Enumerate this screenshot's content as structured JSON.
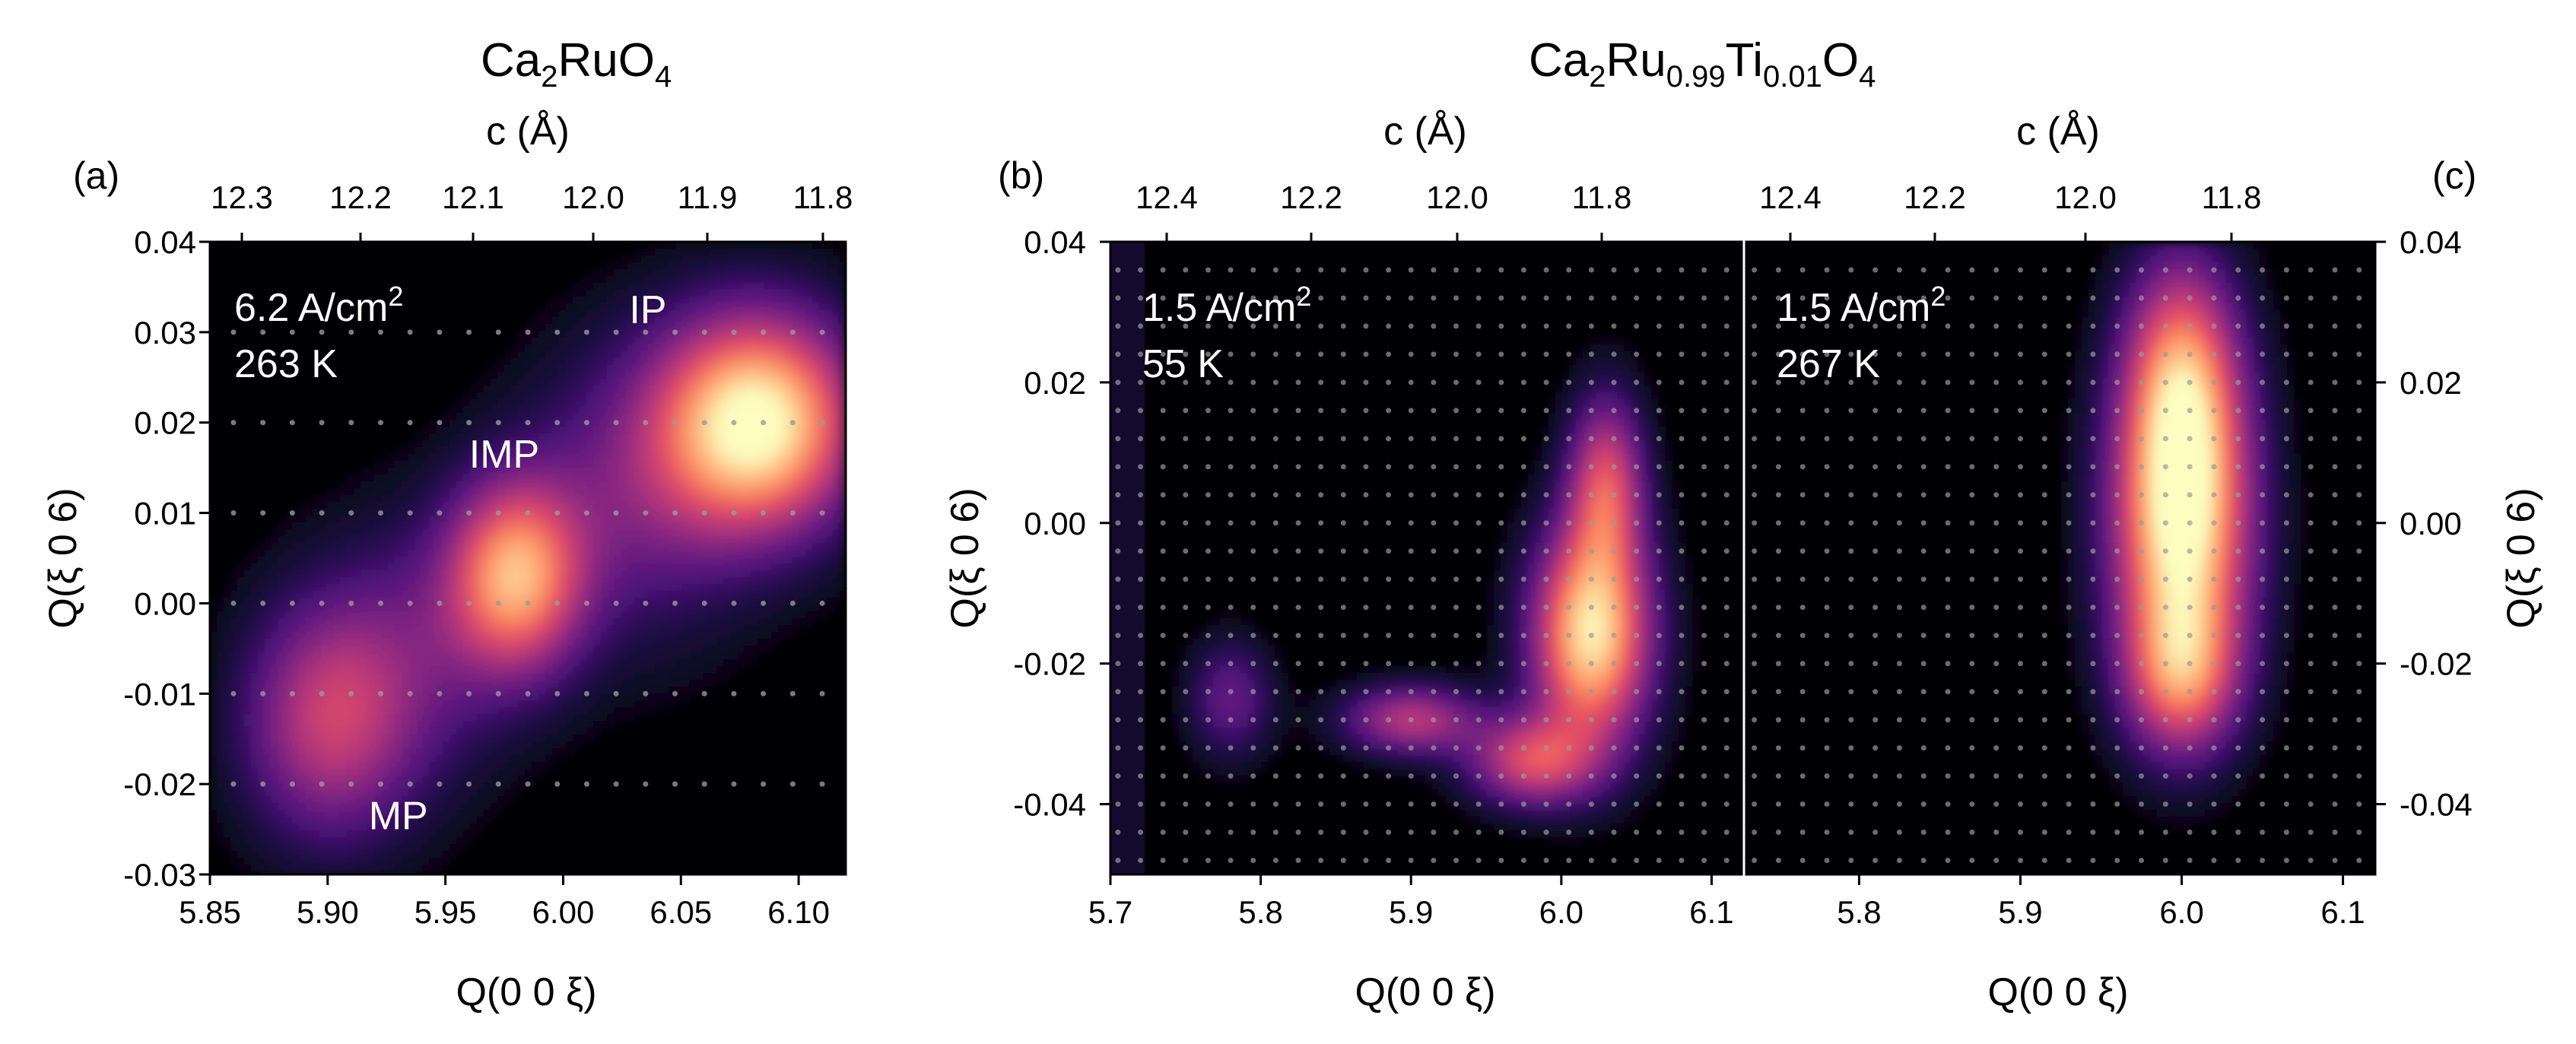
{
  "chart_data": [
    {
      "type": "heatmap",
      "panel_label": "(a)",
      "title_parts": [
        "Ca",
        "2",
        "RuO",
        "4"
      ],
      "xlabel": "Q(0 0 ξ)",
      "ylabel": "Q(ξ 0 6)",
      "top_axis_label": "c (Å)",
      "xlim": [
        5.85,
        6.12
      ],
      "ylim": [
        -0.03,
        0.04
      ],
      "x_ticks": [
        "5.85",
        "5.90",
        "5.95",
        "6.00",
        "6.05",
        "6.10"
      ],
      "x_tick_values": [
        5.85,
        5.9,
        5.95,
        6.0,
        6.05,
        6.1
      ],
      "y_ticks": [
        "-0.03",
        "-0.02",
        "-0.01",
        "0.00",
        "0.01",
        "0.02",
        "0.03",
        "0.04"
      ],
      "y_tick_values": [
        -0.03,
        -0.02,
        -0.01,
        0.0,
        0.01,
        0.02,
        0.03,
        0.04
      ],
      "top_ticks": [
        "12.3",
        "12.2",
        "12.1",
        "12.0",
        "11.9",
        "11.8"
      ],
      "top_tick_values": [
        12.3,
        12.2,
        12.1,
        12.0,
        11.9,
        11.8
      ],
      "conditions": [
        "6.2 A/cm",
        "2",
        "263 K"
      ],
      "peak_labels": [
        {
          "text": "IP",
          "x": 6.036,
          "y": 0.031
        },
        {
          "text": "IMP",
          "x": 5.975,
          "y": 0.015
        },
        {
          "text": "MP",
          "x": 5.93,
          "y": -0.025
        }
      ],
      "peaks": [
        {
          "x": 6.083,
          "y": 0.02,
          "sx": 0.03,
          "sy": 0.0085,
          "amp": 1.0
        },
        {
          "x": 5.98,
          "y": 0.003,
          "sx": 0.02,
          "sy": 0.0075,
          "amp": 0.75
        },
        {
          "x": 5.9,
          "y": -0.013,
          "sx": 0.026,
          "sy": 0.0095,
          "amp": 0.5
        },
        {
          "x": 6.03,
          "y": 0.012,
          "sx": 0.035,
          "sy": 0.012,
          "amp": 0.28
        },
        {
          "x": 5.94,
          "y": -0.005,
          "sx": 0.03,
          "sy": 0.011,
          "amp": 0.22
        }
      ],
      "measure_points_y": [
        -0.02,
        -0.01,
        0.0,
        0.01,
        0.02,
        0.03
      ]
    },
    {
      "type": "heatmap",
      "panel_label": "(b)",
      "title_parts": [
        "Ca",
        "2",
        "Ru",
        "0.99",
        "Ti",
        "0.01",
        "O",
        "4"
      ],
      "xlabel": "Q(0 0 ξ)",
      "ylabel": "Q(ξ 0 6)",
      "top_axis_label": "c (Å)",
      "xlim": [
        5.7,
        6.12
      ],
      "ylim": [
        -0.05,
        0.04
      ],
      "x_ticks": [
        "5.7",
        "5.8",
        "5.9",
        "6.0",
        "6.1"
      ],
      "x_tick_values": [
        5.7,
        5.8,
        5.9,
        6.0,
        6.1
      ],
      "y_ticks": [
        "-0.04",
        "-0.02",
        "0.00",
        "0.02",
        "0.04"
      ],
      "y_tick_values": [
        -0.04,
        -0.02,
        0.0,
        0.02,
        0.04
      ],
      "top_ticks": [
        "12.4",
        "12.2",
        "12.0",
        "11.8"
      ],
      "top_tick_values": [
        12.4,
        12.2,
        12.0,
        11.8
      ],
      "conditions": [
        "1.5 A/cm",
        "2",
        "55 K"
      ],
      "peaks": [
        {
          "x": 6.02,
          "y": -0.016,
          "sx": 0.028,
          "sy": 0.011,
          "amp": 0.95
        },
        {
          "x": 5.98,
          "y": -0.034,
          "sx": 0.03,
          "sy": 0.0045,
          "amp": 0.55
        },
        {
          "x": 5.9,
          "y": -0.028,
          "sx": 0.032,
          "sy": 0.0035,
          "amp": 0.5
        },
        {
          "x": 6.03,
          "y": 0.006,
          "sx": 0.018,
          "sy": 0.009,
          "amp": 0.55
        },
        {
          "x": 5.78,
          "y": -0.025,
          "sx": 0.02,
          "sy": 0.006,
          "amp": 0.3
        }
      ]
    },
    {
      "type": "heatmap",
      "panel_label": "(c)",
      "xlabel": "Q(0 0 ξ)",
      "ylabel": "Q(ξ 0 6)",
      "top_axis_label": "c (Å)",
      "xlim": [
        5.73,
        6.12
      ],
      "ylim": [
        -0.05,
        0.04
      ],
      "x_ticks": [
        "5.8",
        "5.9",
        "6.0",
        "6.1"
      ],
      "x_tick_values": [
        5.8,
        5.9,
        6.0,
        6.1
      ],
      "y_ticks": [
        "-0.04",
        "-0.02",
        "0.00",
        "0.02",
        "0.04"
      ],
      "y_tick_values": [
        -0.04,
        -0.02,
        0.0,
        0.02,
        0.04
      ],
      "top_ticks": [
        "12.4",
        "12.2",
        "12.0",
        "11.8"
      ],
      "top_tick_values": [
        12.4,
        12.2,
        12.0,
        11.8
      ],
      "conditions": [
        "1.5 A/cm",
        "2",
        "267 K"
      ],
      "peaks": [
        {
          "x": 6.0,
          "y": 0.0,
          "sx": 0.03,
          "sy": 0.016,
          "amp": 1.0
        },
        {
          "x": 6.0,
          "y": 0.022,
          "sx": 0.025,
          "sy": 0.012,
          "amp": 0.55
        },
        {
          "x": 6.0,
          "y": -0.022,
          "sx": 0.025,
          "sy": 0.008,
          "amp": 0.5
        }
      ]
    }
  ]
}
